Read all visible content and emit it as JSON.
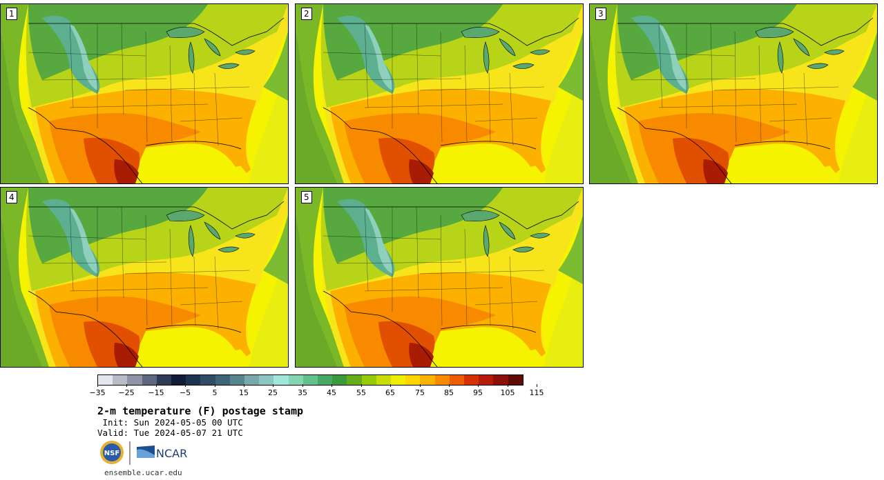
{
  "panels": [
    {
      "label": "1"
    },
    {
      "label": "2"
    },
    {
      "label": "3"
    },
    {
      "label": "4"
    },
    {
      "label": "5"
    }
  ],
  "colorbar": {
    "colors": [
      "#e6e6ee",
      "#b8bcc8",
      "#8e94a6",
      "#5e6680",
      "#2e3a58",
      "#101c38",
      "#1e3350",
      "#2e4c66",
      "#3e6478",
      "#58848e",
      "#78a8aa",
      "#8cc6c2",
      "#a2e6da",
      "#84d6b2",
      "#66c08c",
      "#4aa866",
      "#3c9a3c",
      "#64ae1c",
      "#98c80c",
      "#cadc08",
      "#f0ee00",
      "#fcd400",
      "#fcb200",
      "#f88a00",
      "#ec5c00",
      "#d43200",
      "#b41c08",
      "#8c1008",
      "#5e0c04"
    ],
    "tick_labels": [
      "−35",
      "−25",
      "−15",
      "−5",
      "5",
      "15",
      "25",
      "35",
      "45",
      "55",
      "65",
      "75",
      "85",
      "95",
      "105",
      "115"
    ]
  },
  "title": "2-m temperature (F) postage stamp",
  "init": " Init: Sun 2024-05-05 00 UTC",
  "valid": "Valid: Tue 2024-05-07 21 UTC",
  "logos": {
    "nsf_text": "NSF",
    "ncar_text": "NCAR"
  },
  "url": "ensemble.ucar.edu"
}
